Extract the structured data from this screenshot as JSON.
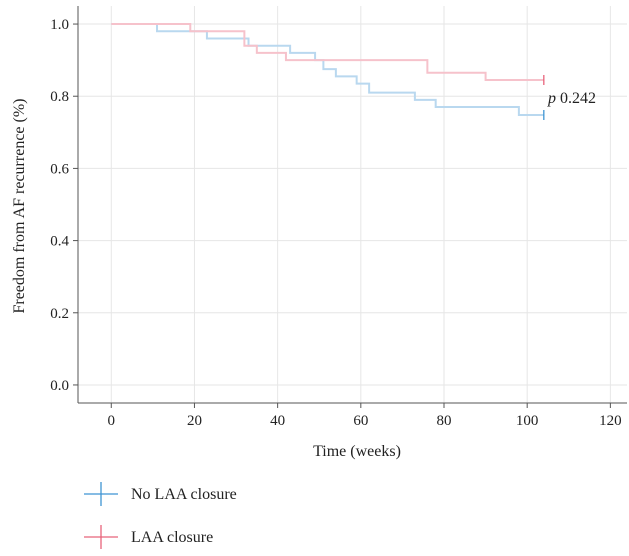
{
  "chart_data": {
    "type": "line",
    "subtype": "kaplan-meier-step",
    "title": "",
    "xlabel": "Time (weeks)",
    "ylabel": "Freedom from AF recurrence (%)",
    "xlim": [
      -8,
      124
    ],
    "ylim": [
      -0.05,
      1.05
    ],
    "xticks": [
      0,
      20,
      40,
      60,
      80,
      100,
      120
    ],
    "yticks": [
      0.0,
      0.2,
      0.4,
      0.6,
      0.8,
      1.0
    ],
    "xtick_labels": [
      "0",
      "20",
      "40",
      "60",
      "80",
      "100",
      "120"
    ],
    "ytick_labels": [
      "0.0",
      "0.2",
      "0.4",
      "0.6",
      "0.8",
      "1.0"
    ],
    "grid": true,
    "legend_position": "bottom-left",
    "annotation": {
      "italic": "p",
      "text": " 0.242"
    },
    "series": [
      {
        "name": "No LAA closure",
        "color": "#b9d8ef",
        "legend_color": "#3f95d3",
        "censor_x": 104,
        "points": [
          [
            0,
            1.0
          ],
          [
            11,
            0.98
          ],
          [
            23,
            0.96
          ],
          [
            33,
            0.94
          ],
          [
            43,
            0.92
          ],
          [
            49,
            0.9
          ],
          [
            51,
            0.875
          ],
          [
            54,
            0.855
          ],
          [
            59,
            0.835
          ],
          [
            62,
            0.81
          ],
          [
            73,
            0.79
          ],
          [
            78,
            0.77
          ],
          [
            98,
            0.748
          ],
          [
            104,
            0.748
          ]
        ]
      },
      {
        "name": "LAA closure",
        "color": "#f6c2cb",
        "legend_color": "#e8637b",
        "censor_x": 104,
        "points": [
          [
            0,
            1.0
          ],
          [
            19,
            0.98
          ],
          [
            32,
            0.94
          ],
          [
            35,
            0.92
          ],
          [
            42,
            0.9
          ],
          [
            76,
            0.865
          ],
          [
            90,
            0.845
          ],
          [
            104,
            0.845
          ]
        ]
      }
    ]
  }
}
